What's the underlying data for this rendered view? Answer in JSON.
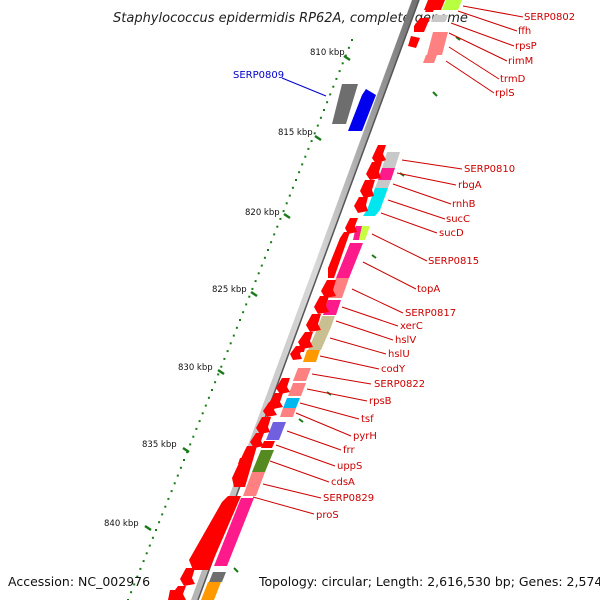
{
  "title": "Staphylococcus epidermidis RP62A, complete genome",
  "footer": {
    "accession": "Accession: NC_002976",
    "summary": "Topology: circular; Length: 2,616,530 bp; Genes: 2,574"
  },
  "scale_ticks": [
    "810 kbp",
    "815 kbp",
    "820 kbp",
    "825 kbp",
    "830 kbp",
    "835 kbp",
    "840 kbp"
  ],
  "genes_top": [
    "SERP0802",
    "ffh",
    "rpsP",
    "rimM",
    "trmD",
    "rplS"
  ],
  "gene_highlight": "SERP0809",
  "genes_main": [
    "SERP0810",
    "rbgA",
    "rnhB",
    "sucC",
    "sucD",
    "SERP0815",
    "topA",
    "SERP0817",
    "xerC",
    "hslV",
    "hslU",
    "codY",
    "SERP0822",
    "rpsB",
    "tsf",
    "pyrH",
    "frr",
    "uppS",
    "cdsA",
    "SERP0829",
    "proS"
  ],
  "colors": {
    "backbone_light": "#c8c8c8",
    "backbone_dark": "#6e6e6e",
    "gene_red": "#ff0000",
    "gene_red_dark": "#cc0000",
    "tick_green": "#1a7a1a",
    "label_red": "#cc0000",
    "label_blue": "#0000cc"
  }
}
